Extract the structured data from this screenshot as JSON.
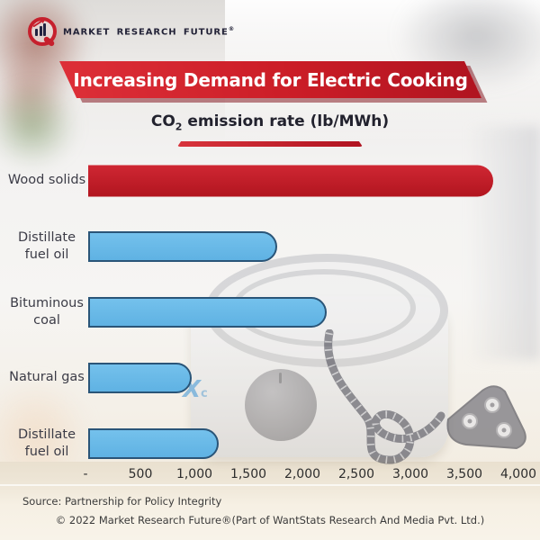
{
  "logo": {
    "brand": "MARKET RESEARCH FUTURE",
    "reg": "®"
  },
  "banner": {
    "title": "Increasing Demand for Electric Cooking"
  },
  "chart_data": {
    "type": "bar",
    "orientation": "horizontal",
    "title": "CO2 emission rate (lb/MWh)",
    "title_parts": {
      "pre": "CO",
      "sub": "2",
      "post": " emission rate (lb/MWh)"
    },
    "categories": [
      "Wood solids",
      "Distillate fuel oil",
      "Bituminous coal",
      "Natural gas",
      "Distillate fuel oil"
    ],
    "values": [
      3750,
      1750,
      2210,
      960,
      1210
    ],
    "bar_colors": [
      "#c1202c",
      "#67b9e8",
      "#67b9e8",
      "#67b9e8",
      "#67b9e8"
    ],
    "highlight_color": "#c1202c",
    "default_color": "#67b9e8",
    "bar_border_color": "#2a5578",
    "xlim": [
      0,
      4000
    ],
    "x_ticks": [
      {
        "label": "-",
        "value": 0
      },
      {
        "label": "500",
        "value": 500
      },
      {
        "label": "1,000",
        "value": 1000
      },
      {
        "label": "1,500",
        "value": 1500
      },
      {
        "label": "2,000",
        "value": 2000
      },
      {
        "label": "2,500",
        "value": 2500
      },
      {
        "label": "3,000",
        "value": 3000
      },
      {
        "label": "3,500",
        "value": 3500
      },
      {
        "label": "4,000",
        "value": 4000
      }
    ],
    "grid": false,
    "legend": false
  },
  "background": {
    "watermark": "X"
  },
  "footer": {
    "source": "Source: Partnership for Policy Integrity",
    "copyright": "© 2022 Market Research Future®(Part of WantStats Research And Media Pvt. Ltd.)"
  }
}
